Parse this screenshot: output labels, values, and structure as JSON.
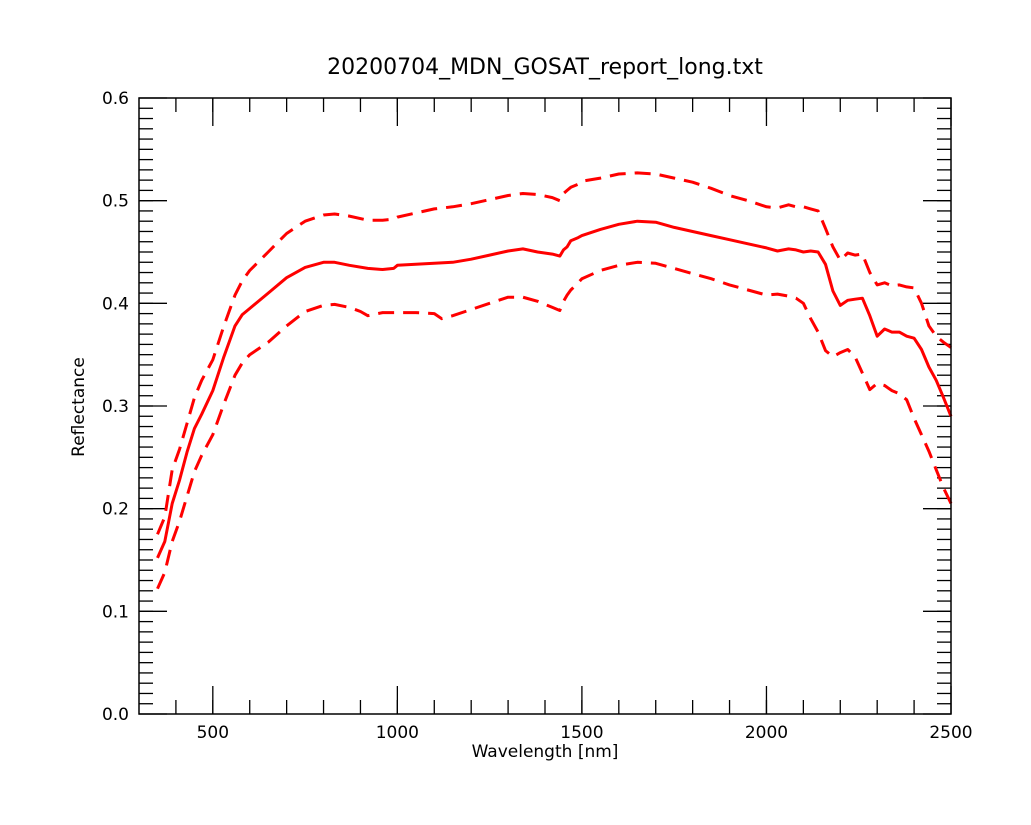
{
  "chart_data": {
    "type": "line",
    "title": "20200704_MDN_GOSAT_report_long.txt",
    "xlabel": "Wavelength [nm]",
    "ylabel": "Reflectance",
    "xlim": [
      300,
      2500
    ],
    "ylim": [
      0.0,
      0.6
    ],
    "x_major_ticks": [
      500,
      1000,
      1500,
      2000,
      2500
    ],
    "x_tick_labels": [
      "500",
      "1000",
      "1500",
      "2000",
      "2500"
    ],
    "x_minor_step": 100,
    "y_major_ticks": [
      0.0,
      0.1,
      0.2,
      0.3,
      0.4,
      0.5,
      0.6
    ],
    "y_tick_labels": [
      "0.0",
      "0.1",
      "0.2",
      "0.3",
      "0.4",
      "0.5",
      "0.6"
    ],
    "y_minor_step": 0.01,
    "grid": false,
    "series": [
      {
        "style": "solid",
        "color": "#ff0000",
        "x": [
          350,
          370,
          390,
          410,
          430,
          450,
          470,
          500,
          530,
          560,
          580,
          600,
          650,
          700,
          750,
          800,
          830,
          870,
          920,
          960,
          990,
          1000,
          1050,
          1100,
          1150,
          1200,
          1250,
          1300,
          1340,
          1380,
          1420,
          1440,
          1450,
          1460,
          1470,
          1490,
          1500,
          1550,
          1600,
          1650,
          1700,
          1750,
          1800,
          1850,
          1900,
          1950,
          2000,
          2030,
          2060,
          2080,
          2100,
          2120,
          2140,
          2160,
          2180,
          2200,
          2220,
          2240,
          2260,
          2280,
          2300,
          2320,
          2340,
          2360,
          2380,
          2400,
          2420,
          2440,
          2460,
          2480,
          2500
        ],
        "values": [
          0.152,
          0.168,
          0.205,
          0.228,
          0.255,
          0.278,
          0.292,
          0.315,
          0.348,
          0.378,
          0.389,
          0.395,
          0.41,
          0.425,
          0.435,
          0.44,
          0.44,
          0.437,
          0.434,
          0.433,
          0.434,
          0.437,
          0.438,
          0.439,
          0.44,
          0.443,
          0.447,
          0.451,
          0.453,
          0.45,
          0.448,
          0.446,
          0.452,
          0.455,
          0.461,
          0.464,
          0.466,
          0.472,
          0.477,
          0.48,
          0.479,
          0.474,
          0.47,
          0.466,
          0.462,
          0.458,
          0.454,
          0.451,
          0.453,
          0.452,
          0.45,
          0.451,
          0.45,
          0.438,
          0.412,
          0.398,
          0.403,
          0.404,
          0.405,
          0.388,
          0.368,
          0.375,
          0.372,
          0.372,
          0.368,
          0.366,
          0.355,
          0.338,
          0.325,
          0.308,
          0.29
        ]
      },
      {
        "style": "dashed",
        "color": "#ff0000",
        "x": [
          350,
          370,
          390,
          410,
          430,
          450,
          470,
          500,
          530,
          560,
          580,
          600,
          650,
          700,
          750,
          800,
          830,
          870,
          920,
          960,
          990,
          1000,
          1050,
          1100,
          1150,
          1200,
          1250,
          1300,
          1340,
          1380,
          1420,
          1440,
          1450,
          1460,
          1470,
          1490,
          1500,
          1550,
          1600,
          1650,
          1700,
          1750,
          1800,
          1850,
          1900,
          1950,
          2000,
          2030,
          2060,
          2080,
          2100,
          2120,
          2140,
          2160,
          2180,
          2200,
          2220,
          2240,
          2260,
          2280,
          2300,
          2320,
          2340,
          2360,
          2380,
          2400,
          2420,
          2440,
          2460,
          2480,
          2500
        ],
        "values": [
          0.175,
          0.192,
          0.238,
          0.258,
          0.283,
          0.308,
          0.325,
          0.345,
          0.378,
          0.408,
          0.422,
          0.432,
          0.45,
          0.468,
          0.48,
          0.486,
          0.487,
          0.485,
          0.481,
          0.481,
          0.482,
          0.484,
          0.488,
          0.492,
          0.494,
          0.497,
          0.501,
          0.505,
          0.507,
          0.506,
          0.503,
          0.5,
          0.507,
          0.51,
          0.513,
          0.516,
          0.519,
          0.522,
          0.526,
          0.527,
          0.526,
          0.522,
          0.518,
          0.512,
          0.505,
          0.5,
          0.494,
          0.493,
          0.496,
          0.494,
          0.494,
          0.492,
          0.49,
          0.473,
          0.455,
          0.442,
          0.449,
          0.447,
          0.448,
          0.43,
          0.418,
          0.42,
          0.417,
          0.418,
          0.416,
          0.415,
          0.4,
          0.378,
          0.368,
          0.362,
          0.357
        ]
      },
      {
        "style": "dashed",
        "color": "#ff0000",
        "x": [
          350,
          370,
          390,
          410,
          430,
          450,
          470,
          500,
          530,
          560,
          580,
          600,
          650,
          700,
          750,
          800,
          830,
          870,
          900,
          920,
          960,
          990,
          1000,
          1050,
          1100,
          1120,
          1150,
          1200,
          1250,
          1300,
          1340,
          1380,
          1420,
          1440,
          1450,
          1460,
          1470,
          1490,
          1500,
          1550,
          1600,
          1650,
          1700,
          1750,
          1800,
          1850,
          1900,
          1950,
          2000,
          2030,
          2060,
          2080,
          2100,
          2120,
          2140,
          2160,
          2180,
          2200,
          2220,
          2240,
          2260,
          2280,
          2300,
          2320,
          2340,
          2360,
          2380,
          2400,
          2420,
          2440,
          2460,
          2480,
          2500
        ],
        "values": [
          0.122,
          0.138,
          0.168,
          0.188,
          0.212,
          0.236,
          0.252,
          0.272,
          0.302,
          0.33,
          0.342,
          0.35,
          0.362,
          0.378,
          0.392,
          0.398,
          0.399,
          0.396,
          0.392,
          0.388,
          0.391,
          0.391,
          0.391,
          0.391,
          0.39,
          0.385,
          0.388,
          0.394,
          0.4,
          0.406,
          0.406,
          0.402,
          0.396,
          0.393,
          0.402,
          0.408,
          0.413,
          0.42,
          0.424,
          0.432,
          0.437,
          0.44,
          0.439,
          0.434,
          0.429,
          0.424,
          0.418,
          0.413,
          0.408,
          0.409,
          0.407,
          0.405,
          0.4,
          0.385,
          0.372,
          0.354,
          0.348,
          0.352,
          0.355,
          0.348,
          0.332,
          0.316,
          0.322,
          0.32,
          0.315,
          0.312,
          0.306,
          0.288,
          0.272,
          0.256,
          0.238,
          0.22,
          0.205
        ]
      }
    ]
  }
}
